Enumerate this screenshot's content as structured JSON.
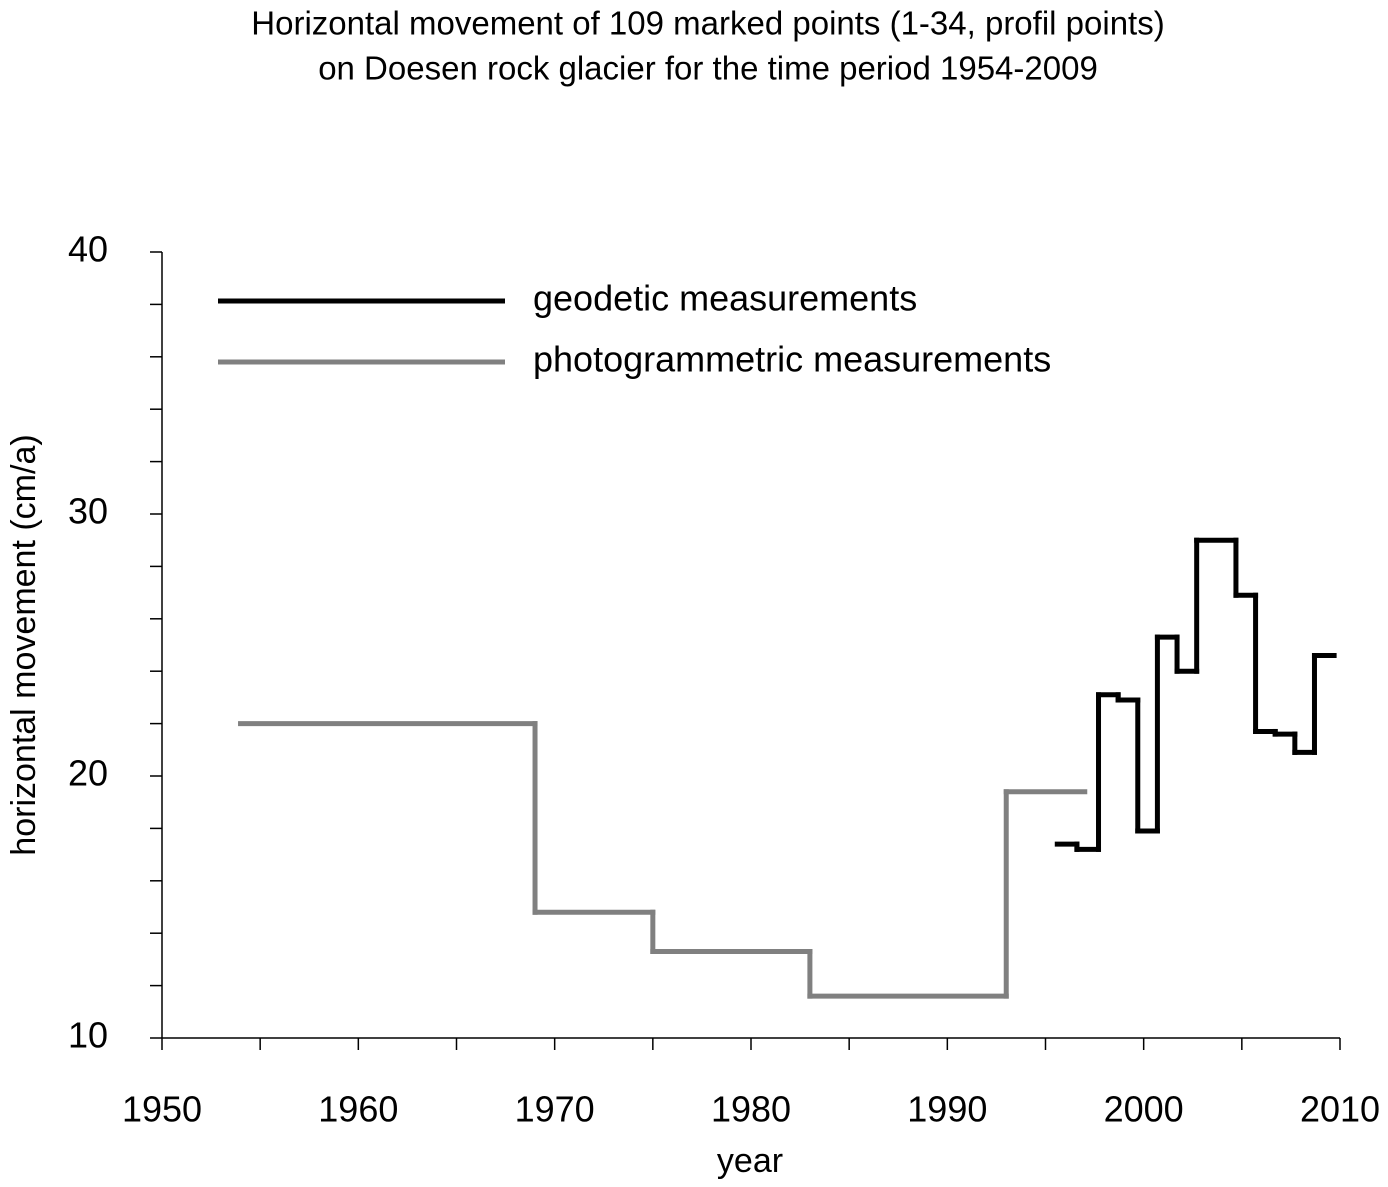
{
  "chart_data": {
    "type": "step",
    "title": [
      "Horizontal movement of 109 marked points (1-34, profil points)",
      "on Doesen rock glacier for the time period 1954-2009"
    ],
    "x_label": "year",
    "y_label": "horizontal movement (cm/a)",
    "xlim": [
      1950,
      2010
    ],
    "xticks": [
      1950,
      1960,
      1970,
      1980,
      1990,
      2000,
      2010
    ],
    "ylim": [
      10,
      40
    ],
    "yticks": [
      10,
      20,
      30,
      40
    ],
    "legend": "upper left",
    "series": [
      {
        "name": "geodetic measurements",
        "color": "#000000",
        "bins": [
          1995.6,
          1996.6,
          1997.7,
          1998.7,
          1999.7,
          2000.7,
          2001.7,
          2002.7,
          2004.7,
          2005.7,
          2006.7,
          2007.7,
          2008.7,
          2009.7
        ],
        "values": [
          17.4,
          17.2,
          23.1,
          22.9,
          17.9,
          25.3,
          24.0,
          29.0,
          26.9,
          21.7,
          21.6,
          20.9,
          24.6
        ]
      },
      {
        "name": "photogrammetric measurements",
        "color": "#808080",
        "bins": [
          1954,
          1969,
          1975,
          1983,
          1993,
          1997
        ],
        "values": [
          22.0,
          14.8,
          13.3,
          11.6,
          19.4
        ]
      }
    ]
  }
}
